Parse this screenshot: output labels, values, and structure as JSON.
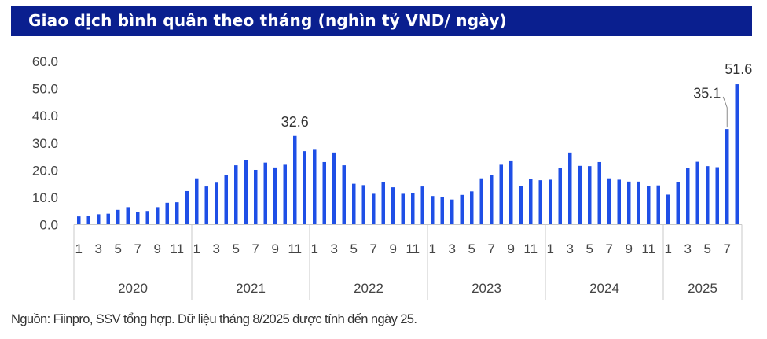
{
  "title": "Giao dịch bình quân theo tháng (nghìn tỷ VND/ ngày)",
  "source": "Nguồn: Fiinpro, SSV tổng hợp. Dữ liệu tháng 8/2025 được tính đến ngày 25.",
  "colors": {
    "title_bg": "#0a1f8f",
    "bar": "#1f4fe6",
    "axis": "#c8c8c8"
  },
  "chart_data": {
    "type": "bar",
    "title": "Giao dịch bình quân theo tháng (nghìn tỷ VND/ ngày)",
    "xlabel": "",
    "ylabel": "",
    "ylim": [
      0,
      60
    ],
    "y_ticks": [
      "0.0",
      "10.0",
      "20.0",
      "30.0",
      "40.0",
      "50.0",
      "60.0"
    ],
    "grid": false,
    "legend": "none",
    "years": [
      {
        "label": "2020",
        "months": 12
      },
      {
        "label": "2021",
        "months": 12
      },
      {
        "label": "2022",
        "months": 12
      },
      {
        "label": "2023",
        "months": 12
      },
      {
        "label": "2024",
        "months": 12
      },
      {
        "label": "2025",
        "months": 8
      }
    ],
    "month_tick_labels": [
      "1",
      "3",
      "5",
      "7",
      "9",
      "11"
    ],
    "values": [
      3.0,
      3.3,
      3.8,
      4.0,
      5.4,
      6.4,
      4.5,
      5.0,
      6.4,
      8.0,
      8.2,
      12.3,
      17.0,
      14.0,
      15.4,
      18.2,
      21.8,
      23.6,
      20.1,
      22.8,
      21.0,
      22.0,
      32.6,
      27.0,
      27.5,
      23.0,
      26.5,
      21.8,
      15.0,
      14.5,
      11.3,
      15.6,
      13.7,
      11.3,
      11.5,
      14.0,
      10.5,
      10.0,
      9.2,
      10.9,
      12.2,
      17.0,
      18.2,
      22.0,
      23.3,
      14.3,
      16.8,
      16.3,
      16.5,
      20.7,
      26.5,
      21.6,
      21.5,
      23.0,
      17.0,
      16.5,
      15.8,
      15.8,
      14.3,
      14.4,
      11.0,
      15.7,
      20.7,
      23.1,
      21.5,
      21.1,
      35.1,
      51.6
    ],
    "annotations": [
      {
        "index": 22,
        "text": "32.6"
      },
      {
        "index": 66,
        "text": "35.1"
      },
      {
        "index": 67,
        "text": "51.6"
      }
    ]
  }
}
